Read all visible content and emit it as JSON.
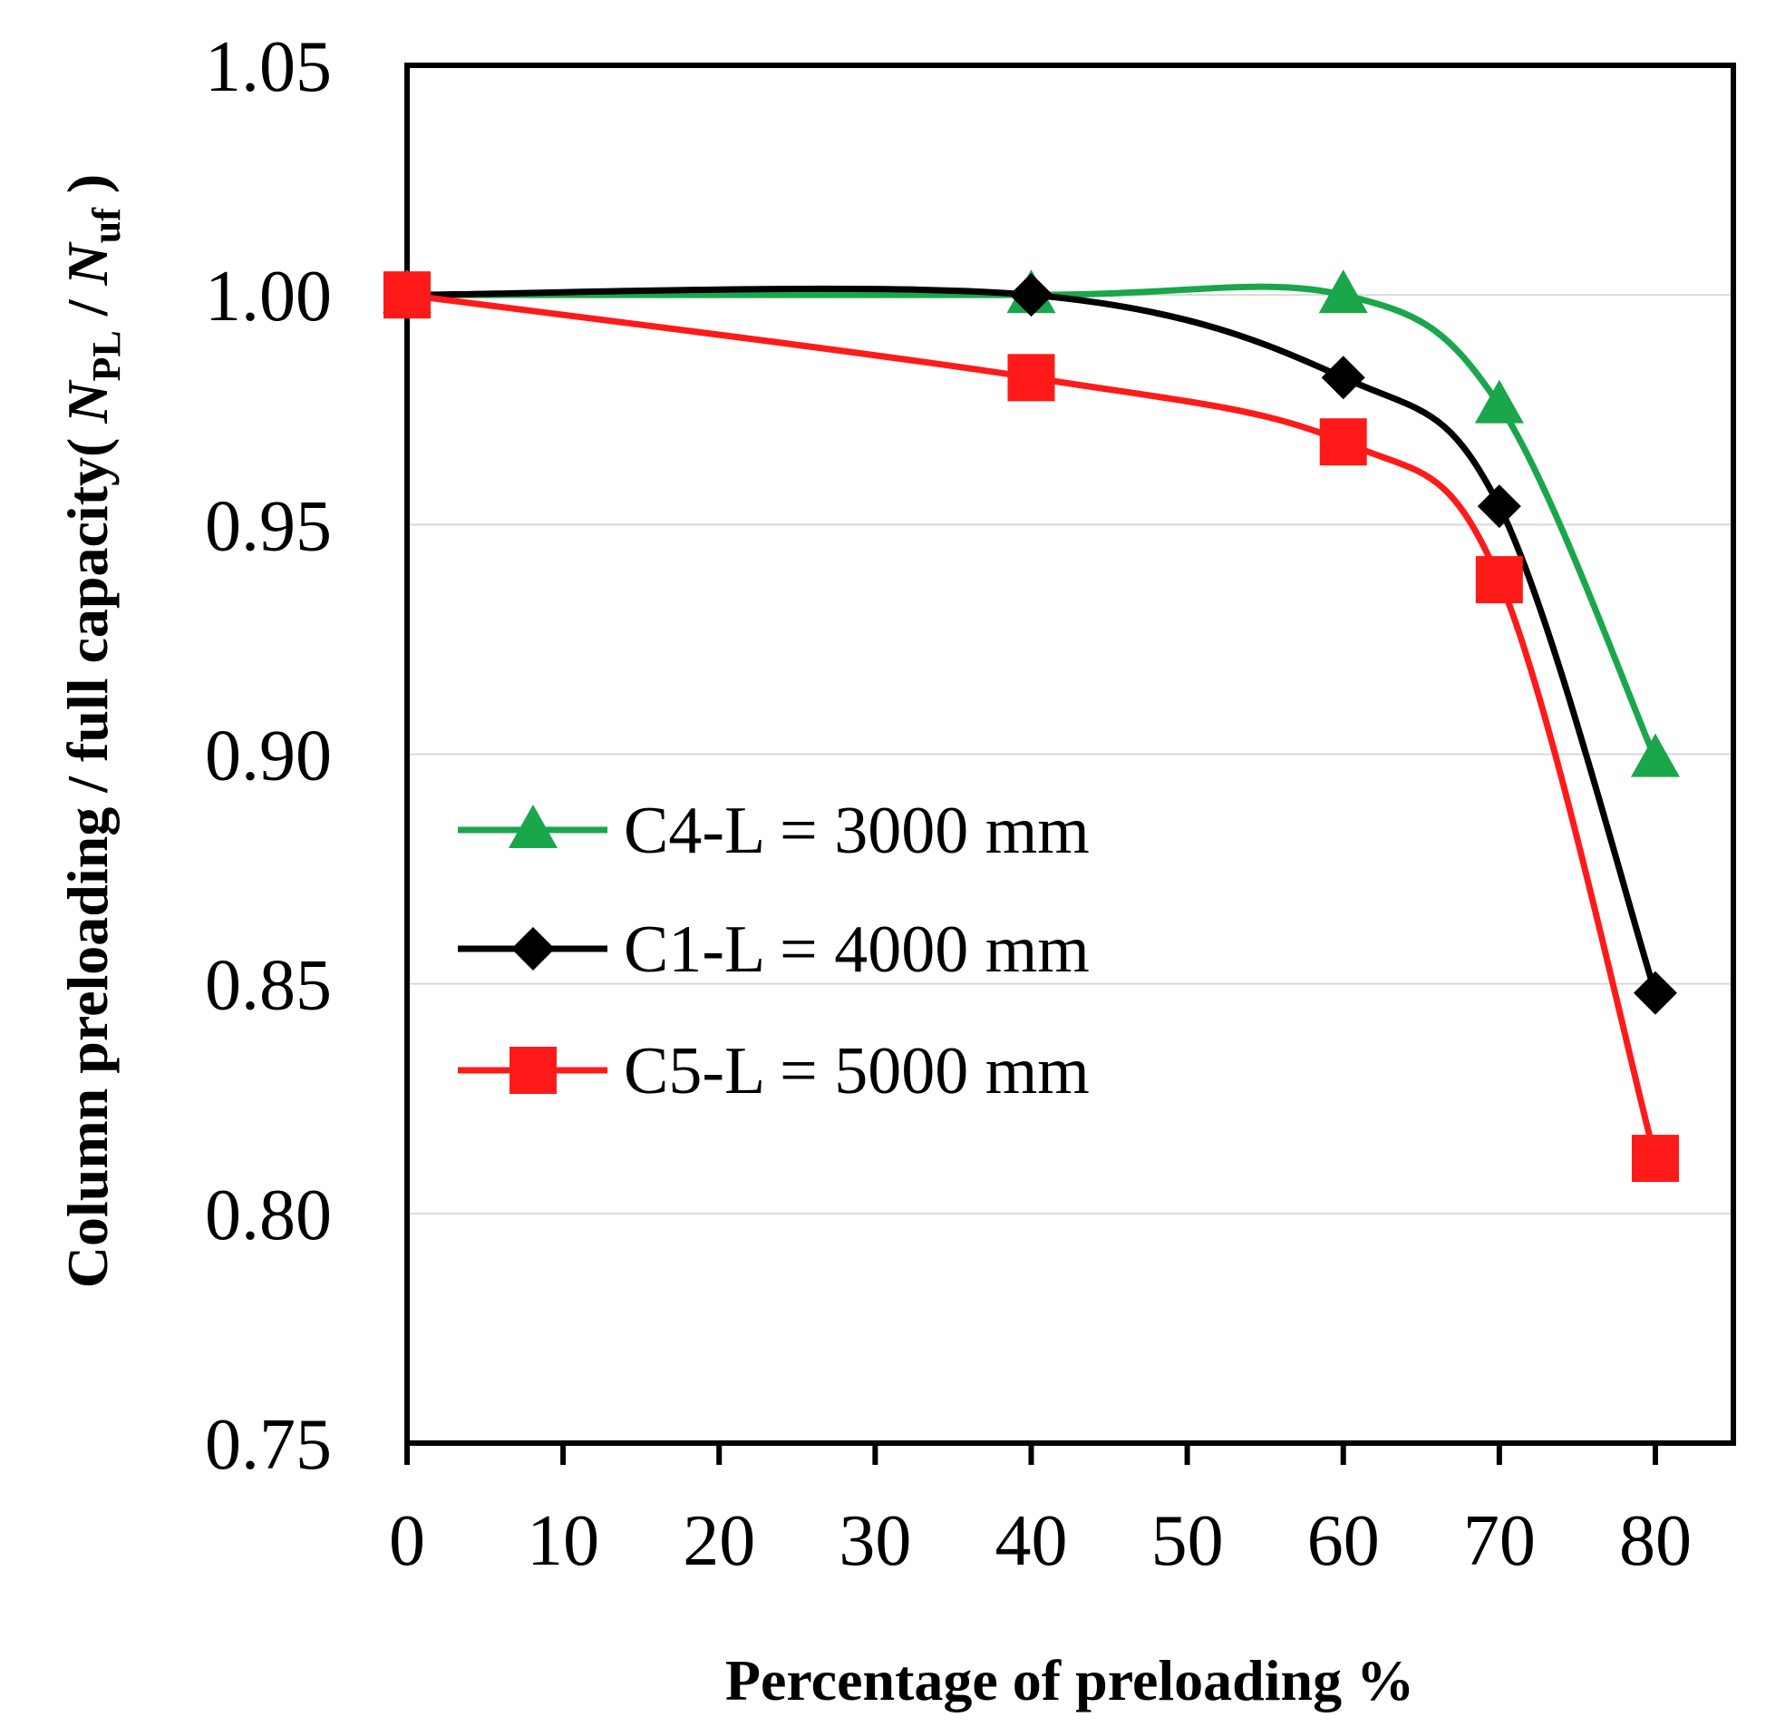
{
  "chart_data": {
    "type": "line",
    "x": [
      0,
      40,
      60,
      70,
      80
    ],
    "series": [
      {
        "name": "C4-L = 3000 mm",
        "color": "#1aa64a",
        "marker": "triangle",
        "values": [
          1.0,
          1.0,
          1.0,
          0.976,
          0.899
        ]
      },
      {
        "name": "C1-L = 4000 mm",
        "color": "#000000",
        "marker": "diamond",
        "values": [
          1.0,
          1.0,
          0.982,
          0.954,
          0.848
        ]
      },
      {
        "name": "C5-L = 5000 mm",
        "color": "#ff1a1a",
        "marker": "square",
        "values": [
          1.0,
          0.982,
          0.968,
          0.938,
          0.812
        ]
      }
    ],
    "xlabel": "Percentage of preloading %",
    "ylabel": {
      "prefix": "Column preloading / full capacity( ",
      "n1": "N",
      "sub1": "PL",
      "slash": " / ",
      "n2": "N",
      "sub2": "uf",
      "suffix": " )"
    },
    "xlim": [
      0,
      85
    ],
    "ylim": [
      0.75,
      1.05
    ],
    "xticks": [
      0,
      10,
      20,
      30,
      40,
      50,
      60,
      70,
      80
    ],
    "yticks": [
      0.75,
      0.8,
      0.85,
      0.9,
      0.95,
      1.0,
      1.05
    ],
    "ytick_labels": [
      "0.75",
      "0.80",
      "0.85",
      "0.90",
      "0.95",
      "1.00",
      "1.05"
    ],
    "grid": "horizontal",
    "legend_position": "center-left",
    "smooth_lines": true
  }
}
